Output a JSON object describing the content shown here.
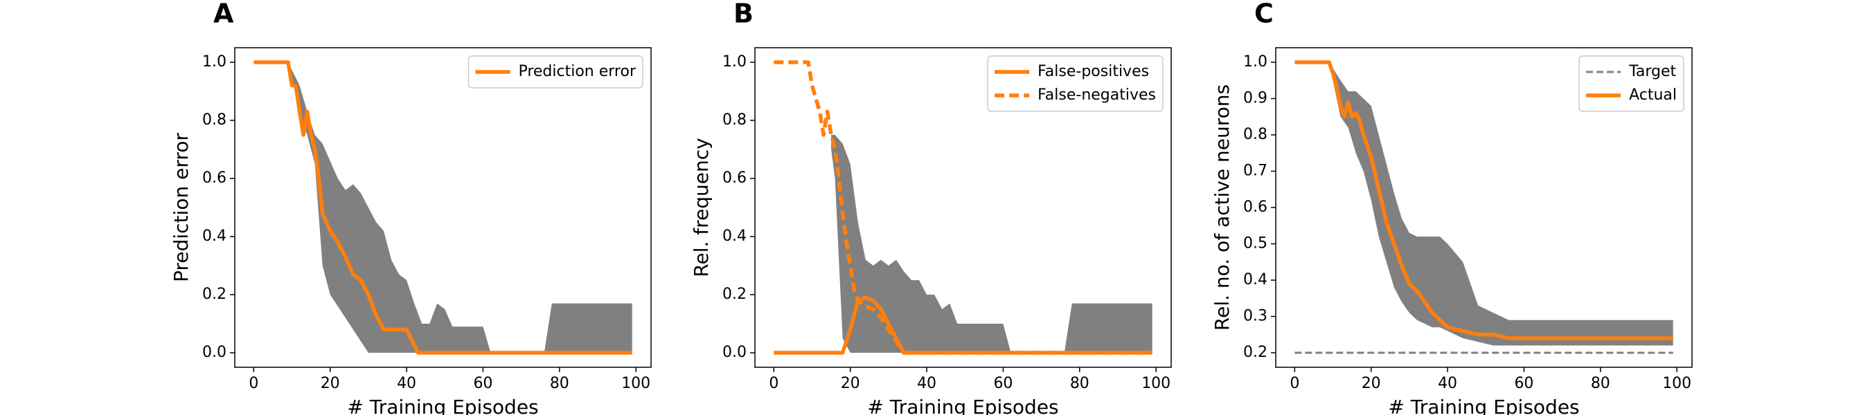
{
  "chart_data": [
    {
      "type": "line",
      "panel": "A",
      "xlabel": "# Training Episodes",
      "ylabel": "Prediction error",
      "xlim": [
        -4.95,
        103.95
      ],
      "ylim": [
        -0.05,
        1.05
      ],
      "xticks": [
        0,
        20,
        40,
        60,
        80,
        100
      ],
      "yticks": [
        {
          "value": 0,
          "label": "0.0"
        },
        0.2,
        0.4,
        0.6,
        0.8,
        {
          "value": 1,
          "label": "1.0"
        }
      ],
      "legend": "upper right",
      "band": {
        "color": "#808080",
        "x": [
          0,
          9,
          12,
          14,
          16,
          18,
          20,
          22,
          24,
          26,
          28,
          30,
          32,
          34,
          36,
          38,
          40,
          42,
          44,
          46,
          48,
          50,
          52,
          60,
          62,
          76,
          78,
          99
        ],
        "upper": [
          1,
          1,
          0.92,
          0.83,
          0.75,
          0.72,
          0.66,
          0.6,
          0.56,
          0.58,
          0.55,
          0.5,
          0.45,
          0.42,
          0.32,
          0.27,
          0.25,
          0.17,
          0.1,
          0.1,
          0.17,
          0.15,
          0.09,
          0.09,
          0,
          0,
          0.17,
          0.17
        ],
        "lower": [
          1,
          1,
          0.83,
          0.75,
          0.65,
          0.3,
          0.2,
          0.16,
          0.12,
          0.08,
          0.04,
          0,
          0,
          0,
          0,
          0,
          0,
          0,
          0,
          0,
          0,
          0,
          0,
          0,
          0,
          0,
          0,
          0
        ]
      },
      "series": [
        {
          "name": "Prediction error",
          "color": "#ff7f0e",
          "linestyle": "solid",
          "x": [
            0,
            9,
            10,
            11,
            12,
            13,
            14,
            15,
            16,
            17,
            18,
            20,
            22,
            24,
            26,
            28,
            30,
            32,
            34,
            40,
            43,
            99
          ],
          "values": [
            1,
            1,
            0.92,
            0.92,
            0.83,
            0.75,
            0.83,
            0.75,
            0.7,
            0.6,
            0.48,
            0.42,
            0.38,
            0.33,
            0.27,
            0.25,
            0.2,
            0.13,
            0.08,
            0.08,
            0,
            0
          ]
        }
      ]
    },
    {
      "type": "line",
      "panel": "B",
      "xlabel": "# Training Episodes",
      "ylabel": "Rel. frequency",
      "xlim": [
        -4.95,
        103.95
      ],
      "ylim": [
        -0.05,
        1.05
      ],
      "xticks": [
        0,
        20,
        40,
        60,
        80,
        100
      ],
      "yticks": [
        {
          "value": 0,
          "label": "0.0"
        },
        0.2,
        0.4,
        0.6,
        0.8,
        {
          "value": 1,
          "label": "1.0"
        }
      ],
      "legend": "upper right",
      "band": {
        "color": "#808080",
        "x": [
          15,
          16,
          18,
          20,
          22,
          24,
          26,
          28,
          30,
          32,
          34,
          36,
          38,
          40,
          42,
          44,
          46,
          48,
          60,
          62,
          76,
          78,
          99
        ],
        "upper": [
          0.75,
          0.75,
          0.72,
          0.65,
          0.45,
          0.32,
          0.3,
          0.32,
          0.3,
          0.32,
          0.28,
          0.25,
          0.25,
          0.2,
          0.2,
          0.15,
          0.17,
          0.1,
          0.1,
          0,
          0,
          0.17,
          0.17
        ],
        "lower": [
          0.7,
          0.6,
          0.05,
          0,
          0,
          0,
          0,
          0,
          0,
          0,
          0,
          0,
          0,
          0,
          0,
          0,
          0,
          0,
          0,
          0,
          0,
          0,
          0
        ]
      },
      "series": [
        {
          "name": "False-positives",
          "color": "#ff7f0e",
          "linestyle": "solid",
          "x": [
            0,
            18,
            20,
            22,
            24,
            26,
            28,
            30,
            32,
            34,
            99
          ],
          "values": [
            0,
            0,
            0.08,
            0.18,
            0.19,
            0.18,
            0.15,
            0.1,
            0.05,
            0,
            0
          ]
        },
        {
          "name": "False-negatives",
          "color": "#ff7f0e",
          "linestyle": "dashed",
          "x": [
            0,
            9,
            10,
            12,
            13,
            14,
            15,
            16,
            17,
            18,
            19,
            20,
            21,
            22,
            24,
            26,
            28,
            30,
            32,
            34,
            99
          ],
          "values": [
            1,
            1,
            0.92,
            0.83,
            0.75,
            0.83,
            0.75,
            0.7,
            0.6,
            0.48,
            0.38,
            0.3,
            0.22,
            0.18,
            0.16,
            0.15,
            0.12,
            0.08,
            0.04,
            0,
            0
          ]
        }
      ]
    },
    {
      "type": "line",
      "panel": "C",
      "xlabel": "# Training Episodes",
      "ylabel": "Rel. no. of active neurons",
      "xlim": [
        -4.95,
        103.95
      ],
      "ylim": [
        0.16,
        1.04
      ],
      "xticks": [
        0,
        20,
        40,
        60,
        80,
        100
      ],
      "yticks": [
        0.2,
        0.3,
        0.4,
        0.5,
        0.6,
        0.7,
        0.8,
        0.9,
        {
          "value": 1,
          "label": "1.0"
        }
      ],
      "legend": "upper right",
      "band": {
        "color": "#808080",
        "x": [
          0,
          9,
          12,
          14,
          16,
          18,
          20,
          22,
          24,
          26,
          28,
          30,
          32,
          36,
          38,
          40,
          44,
          48,
          52,
          56,
          99
        ],
        "upper": [
          1,
          1,
          0.95,
          0.92,
          0.92,
          0.9,
          0.88,
          0.8,
          0.72,
          0.64,
          0.57,
          0.53,
          0.52,
          0.52,
          0.52,
          0.5,
          0.45,
          0.33,
          0.31,
          0.29,
          0.29
        ],
        "lower": [
          1,
          1,
          0.85,
          0.82,
          0.75,
          0.7,
          0.62,
          0.52,
          0.45,
          0.38,
          0.34,
          0.31,
          0.29,
          0.27,
          0.27,
          0.26,
          0.24,
          0.23,
          0.22,
          0.22,
          0.22
        ]
      },
      "series": [
        {
          "name": "Target",
          "color": "#808080",
          "linestyle": "dashed",
          "x": [
            0,
            99
          ],
          "values": [
            0.2,
            0.2
          ]
        },
        {
          "name": "Actual",
          "color": "#ff7f0e",
          "linestyle": "solid",
          "x": [
            0,
            9,
            10,
            11,
            12,
            13,
            14,
            15,
            16,
            17,
            18,
            20,
            22,
            24,
            26,
            28,
            30,
            32,
            34,
            36,
            38,
            40,
            44,
            48,
            52,
            56,
            99
          ],
          "values": [
            1,
            1,
            0.97,
            0.93,
            0.88,
            0.85,
            0.89,
            0.85,
            0.86,
            0.84,
            0.8,
            0.74,
            0.65,
            0.56,
            0.5,
            0.44,
            0.39,
            0.37,
            0.34,
            0.31,
            0.29,
            0.27,
            0.26,
            0.25,
            0.25,
            0.24,
            0.24
          ]
        }
      ]
    }
  ]
}
